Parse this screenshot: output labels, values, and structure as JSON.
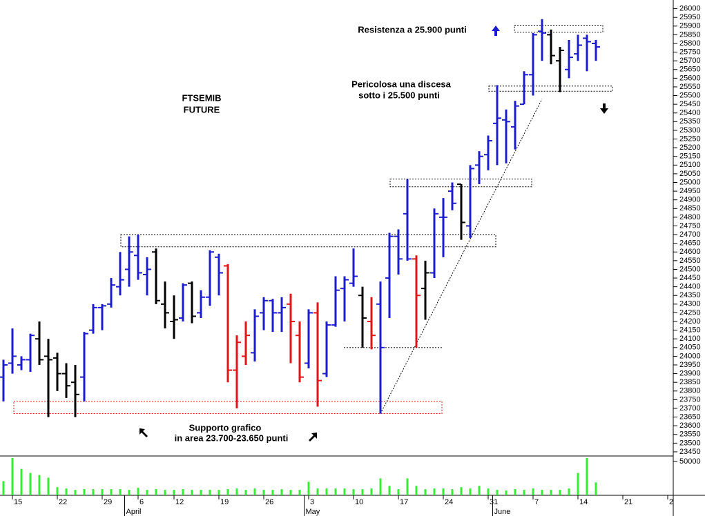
{
  "chart_data": {
    "type": "ohlc",
    "annotations": [
      "FTSEMIB",
      "FUTURE",
      "Resistenza a 25.900 punti",
      "Pericolosa una discesa",
      "sotto i 25.500 punti",
      "Supporto grafico",
      "in area 23.700-23.650 punti"
    ],
    "categories": [
      null,
      "15",
      null,
      null,
      null,
      null,
      "22",
      null,
      null,
      null,
      null,
      "29",
      null,
      null,
      null,
      "6",
      null,
      null,
      null,
      "12",
      null,
      null,
      null,
      null,
      "19",
      null,
      null,
      null,
      null,
      "26",
      null,
      null,
      null,
      null,
      "3",
      null,
      null,
      null,
      null,
      "10",
      null,
      null,
      null,
      null,
      "17",
      null,
      null,
      null,
      null,
      "24",
      null,
      null,
      null,
      null,
      "31",
      null,
      null,
      null,
      null,
      "7",
      null,
      null,
      null,
      null,
      "14",
      null,
      null,
      null,
      null,
      "21",
      null,
      null,
      null,
      null,
      "2"
    ],
    "months": [
      {
        "label": "April",
        "first_index": 14
      },
      {
        "label": "May",
        "first_index": 34
      },
      {
        "label": "June",
        "first_index": 55
      }
    ],
    "open": [
      23880,
      23960,
      23950,
      23980,
      24100,
      24000,
      23990,
      23900,
      23850,
      23880,
      24150,
      24280,
      24300,
      24400,
      24500,
      24580,
      24470,
      24600,
      24300,
      24200,
      24220,
      24420,
      24250,
      24340,
      24570,
      24520,
      23920,
      24000,
      24020,
      24250,
      24320,
      24250,
      24300,
      24120,
      23960,
      24250,
      23900,
      24180,
      24390,
      24420,
      24350,
      24200,
      24300,
      24450,
      24690,
      24820,
      24560,
      24390,
      24480,
      24800,
      24950,
      24990,
      24750,
      25100,
      25160,
      25340,
      25360,
      25320,
      25450,
      25620,
      25870,
      25850,
      25700,
      25650,
      25740,
      25830,
      25800,
      null,
      null,
      null,
      null,
      null,
      null,
      null,
      null
    ],
    "high": [
      23980,
      24160,
      24000,
      24130,
      24200,
      24100,
      24020,
      23960,
      23950,
      24140,
      24300,
      24300,
      24450,
      24600,
      24690,
      24700,
      24570,
      24620,
      24430,
      24350,
      24420,
      24430,
      24380,
      24610,
      24590,
      24530,
      24120,
      24200,
      24270,
      24340,
      24330,
      24340,
      24360,
      24200,
      24270,
      24310,
      24200,
      24460,
      24460,
      24620,
      24400,
      24340,
      24430,
      24710,
      24730,
      25020,
      24580,
      24550,
      24850,
      24910,
      25000,
      24990,
      25100,
      25180,
      25270,
      25560,
      25420,
      25470,
      25640,
      25860,
      25940,
      25880,
      25780,
      25820,
      25850,
      25850,
      25820,
      null,
      null,
      null,
      null,
      null,
      null,
      null,
      null
    ],
    "low": [
      23740,
      23900,
      23920,
      23910,
      23950,
      23650,
      23800,
      23760,
      23650,
      23740,
      24130,
      24150,
      24280,
      24350,
      24400,
      24440,
      24350,
      24300,
      24160,
      24100,
      24200,
      24190,
      24220,
      24290,
      24350,
      23850,
      23700,
      23950,
      23970,
      24150,
      24140,
      24140,
      23960,
      23850,
      23930,
      23710,
      23880,
      24170,
      24200,
      24400,
      24050,
      24040,
      23670,
      24220,
      24470,
      24550,
      24050,
      24210,
      24450,
      24570,
      24840,
      24670,
      24680,
      24990,
      25070,
      25100,
      25110,
      25190,
      25450,
      25500,
      25700,
      25680,
      25520,
      25600,
      25700,
      25640,
      25700,
      null,
      null,
      null,
      null,
      null,
      null,
      null,
      null
    ],
    "close": [
      23950,
      24000,
      23980,
      24120,
      23980,
      23980,
      23900,
      23830,
      23780,
      24130,
      24280,
      24290,
      24410,
      24440,
      24600,
      24480,
      24500,
      24320,
      24250,
      24210,
      24410,
      24230,
      24340,
      24600,
      24480,
      23920,
      24080,
      24120,
      24230,
      24320,
      24250,
      24280,
      24200,
      23880,
      24250,
      23860,
      24180,
      24380,
      24440,
      24460,
      24220,
      24120,
      24050,
      24690,
      24560,
      24560,
      24350,
      24480,
      24820,
      24800,
      24880,
      24770,
      25080,
      25150,
      25240,
      25370,
      25350,
      25440,
      25620,
      25850,
      25860,
      25730,
      25760,
      25720,
      25790,
      25810,
      25780,
      null,
      null,
      null,
      null,
      null,
      null,
      null,
      null
    ],
    "colors": {
      "b": "#1c1ccf",
      "k": "#000000",
      "r": "#e01515"
    },
    "bar_color": [
      "b",
      "b",
      "b",
      "b",
      "k",
      "k",
      "k",
      "k",
      "k",
      "b",
      "b",
      "b",
      "b",
      "b",
      "b",
      "b",
      "b",
      "k",
      "k",
      "k",
      "b",
      "k",
      "b",
      "b",
      "b",
      "r",
      "r",
      "r",
      "b",
      "b",
      "b",
      "b",
      "r",
      "r",
      "b",
      "r",
      "b",
      "b",
      "b",
      "b",
      "k",
      "r",
      "b",
      "b",
      "b",
      "b",
      "r",
      "k",
      "b",
      "b",
      "b",
      "k",
      "b",
      "b",
      "b",
      "b",
      "b",
      "b",
      "b",
      "b",
      "b",
      "k",
      "k",
      "b",
      "b",
      "b",
      "b",
      null,
      null,
      null,
      null,
      null,
      null,
      null,
      null
    ],
    "ylim": [
      23430,
      26050
    ],
    "yticks": [
      23450,
      23500,
      23550,
      23600,
      23650,
      23700,
      23750,
      23800,
      23850,
      23900,
      23950,
      24000,
      24050,
      24100,
      24150,
      24200,
      24250,
      24300,
      24350,
      24400,
      24450,
      24500,
      24550,
      24600,
      24650,
      24700,
      24750,
      24800,
      24850,
      24900,
      24950,
      25000,
      25050,
      25100,
      25150,
      25200,
      25250,
      25300,
      25350,
      25400,
      25450,
      25500,
      25550,
      25600,
      25650,
      25700,
      25750,
      25800,
      25850,
      25900,
      25950,
      26000
    ],
    "volume": {
      "color": "#33ee33",
      "ylim": [
        0,
        57000
      ],
      "yticks": [
        50000
      ],
      "values": [
        21000,
        55000,
        39000,
        33000,
        30000,
        26000,
        12000,
        10000,
        8000,
        9000,
        9000,
        9000,
        9000,
        9000,
        8000,
        11000,
        8000,
        9000,
        8000,
        8000,
        9000,
        8000,
        8000,
        8000,
        8000,
        9000,
        10000,
        8000,
        10000,
        8000,
        8000,
        9000,
        8000,
        8000,
        20000,
        10000,
        10000,
        10000,
        10000,
        9000,
        9000,
        10000,
        25000,
        14000,
        9000,
        25000,
        14000,
        9000,
        10000,
        10000,
        9000,
        12000,
        10000,
        14000,
        10000,
        8000,
        7000,
        9000,
        8000,
        10000,
        8000,
        8000,
        8000,
        10000,
        33000,
        55000,
        19000,
        null,
        null,
        null,
        null,
        null,
        null,
        null,
        null
      ]
    },
    "zones": [
      {
        "low": 25865,
        "high": 25905,
        "color": "#000000"
      },
      {
        "low": 25525,
        "high": 25555,
        "color": "#000000"
      },
      {
        "low": 24975,
        "high": 25020,
        "color": "#000000"
      },
      {
        "low": 24630,
        "high": 24700,
        "color": "#000000"
      },
      {
        "low": 23670,
        "high": 23740,
        "color": "#e01515"
      }
    ],
    "support_line": 24050,
    "trendline": [
      23670,
      25480
    ]
  }
}
